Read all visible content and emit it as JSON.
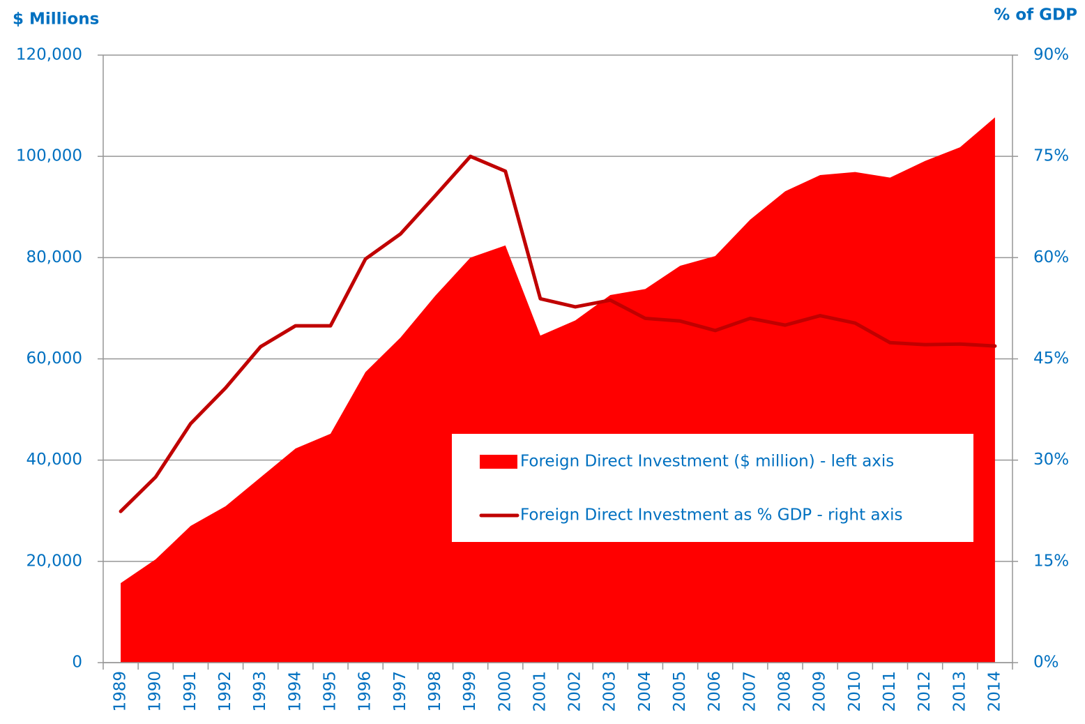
{
  "chart_data": {
    "type": "area_line",
    "y_axis_title": "$ Millions",
    "y2_axis_title": "% of GDP",
    "categories": [
      "1989",
      "1990",
      "1991",
      "1992",
      "1993",
      "1994",
      "1995",
      "1996",
      "1997",
      "1998",
      "1999",
      "2000",
      "2001",
      "2002",
      "2003",
      "2004",
      "2005",
      "2006",
      "2007",
      "2008",
      "2009",
      "2010",
      "2011",
      "2012",
      "2013",
      "2014"
    ],
    "series": [
      {
        "name": "Foreign Direct Investment ($ million) - left axis",
        "type": "area",
        "color": "#ff0000",
        "axis": "y",
        "values": [
          15700,
          20400,
          27000,
          30900,
          36600,
          42300,
          45200,
          57400,
          64200,
          72500,
          80000,
          82400,
          64600,
          67600,
          72600,
          73800,
          78400,
          80300,
          87500,
          93100,
          96300,
          96900,
          95800,
          99100,
          101800,
          107700
        ]
      },
      {
        "name": "Foreign Direct Investment as % GDP - right axis",
        "type": "line",
        "color": "#c00000",
        "axis": "y2",
        "values": [
          22.4,
          27.5,
          35.4,
          40.7,
          46.8,
          49.9,
          49.9,
          59.8,
          63.5,
          69.2,
          75.0,
          72.8,
          53.9,
          52.7,
          53.7,
          51.0,
          50.6,
          49.2,
          51.0,
          50.0,
          51.4,
          50.3,
          47.4,
          47.1,
          47.2,
          46.9
        ]
      }
    ],
    "ylim": [
      0,
      120000
    ],
    "yticks": [
      0,
      {
        "value": 20000,
        "label": "20,000"
      },
      {
        "value": 40000,
        "label": "40,000"
      },
      {
        "value": 60000,
        "label": "60,000"
      },
      {
        "value": 80000,
        "label": "80,000"
      },
      {
        "value": 100000,
        "label": "100,000"
      },
      {
        "value": 120000,
        "label": "120,000"
      }
    ],
    "y2lim": [
      0,
      90
    ],
    "y2ticks": [
      {
        "value": 0,
        "label": "0%"
      },
      {
        "value": 15,
        "label": "15%"
      },
      {
        "value": 30,
        "label": "30%"
      },
      {
        "value": 45,
        "label": "45%"
      },
      {
        "value": 60,
        "label": "60%"
      },
      {
        "value": 75,
        "label": "75%"
      },
      {
        "value": 90,
        "label": "90%"
      }
    ],
    "grid": true,
    "legend": "center-right"
  }
}
